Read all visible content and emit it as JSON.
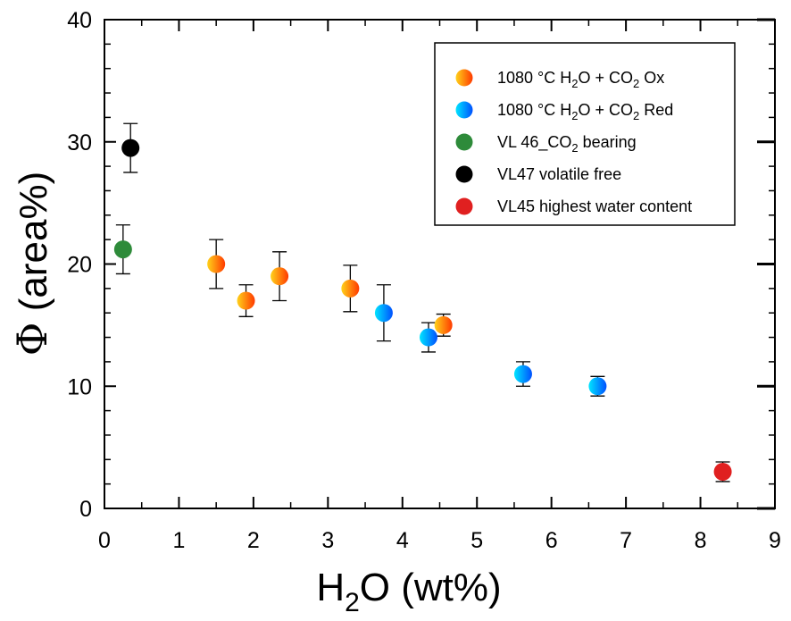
{
  "chart_data": {
    "type": "scatter",
    "xlabel": {
      "pre": "H",
      "sub": "2",
      "post": "O (wt%)"
    },
    "ylabel": {
      "symbol": "Φ",
      "rest": " (area%)"
    },
    "xlim": [
      0,
      9
    ],
    "ylim": [
      0,
      40
    ],
    "xticks": [
      "0",
      "1",
      "2",
      "3",
      "4",
      "5",
      "6",
      "7",
      "8",
      "9"
    ],
    "yticks": [
      "0",
      "10",
      "20",
      "30",
      "40"
    ],
    "legend_position": "top-right",
    "series": [
      {
        "legend": {
          "pre": "1080 °C H",
          "sub1": "2",
          "mid": "O + CO",
          "sub2": "2",
          "post": " Ox"
        },
        "gradient": [
          "#ffd21a",
          "#ff3a00"
        ],
        "points": [
          {
            "x": 1.5,
            "y": 20,
            "err": 2
          },
          {
            "x": 1.9,
            "y": 17,
            "err": 1.3
          },
          {
            "x": 2.35,
            "y": 19,
            "err": 2
          },
          {
            "x": 3.3,
            "y": 18,
            "err": 1.9
          },
          {
            "x": 4.55,
            "y": 15,
            "err": 0.9
          }
        ]
      },
      {
        "legend": {
          "pre": "1080 °C H",
          "sub1": "2",
          "mid": "O + CO",
          "sub2": "2",
          "post": " Red"
        },
        "gradient": [
          "#00e5ff",
          "#0050ff"
        ],
        "points": [
          {
            "x": 3.75,
            "y": 16,
            "err": 2.3
          },
          {
            "x": 4.35,
            "y": 14,
            "err": 1.2
          },
          {
            "x": 5.62,
            "y": 11,
            "err": 1
          },
          {
            "x": 6.62,
            "y": 10,
            "err": 0.8
          }
        ]
      },
      {
        "legend": {
          "pre": "VL 46_CO",
          "sub1": "2",
          "post": " bearing"
        },
        "color": "#2e8b3a",
        "points": [
          {
            "x": 0.25,
            "y": 21.2,
            "err": 2
          }
        ]
      },
      {
        "legend": {
          "pre": "VL47 volatile free"
        },
        "color": "#000000",
        "points": [
          {
            "x": 0.35,
            "y": 29.5,
            "err": 2
          }
        ]
      },
      {
        "legend": {
          "pre": "VL45 highest water content"
        },
        "color": "#e02020",
        "points": [
          {
            "x": 8.3,
            "y": 3,
            "err": 0.8
          }
        ]
      }
    ]
  }
}
